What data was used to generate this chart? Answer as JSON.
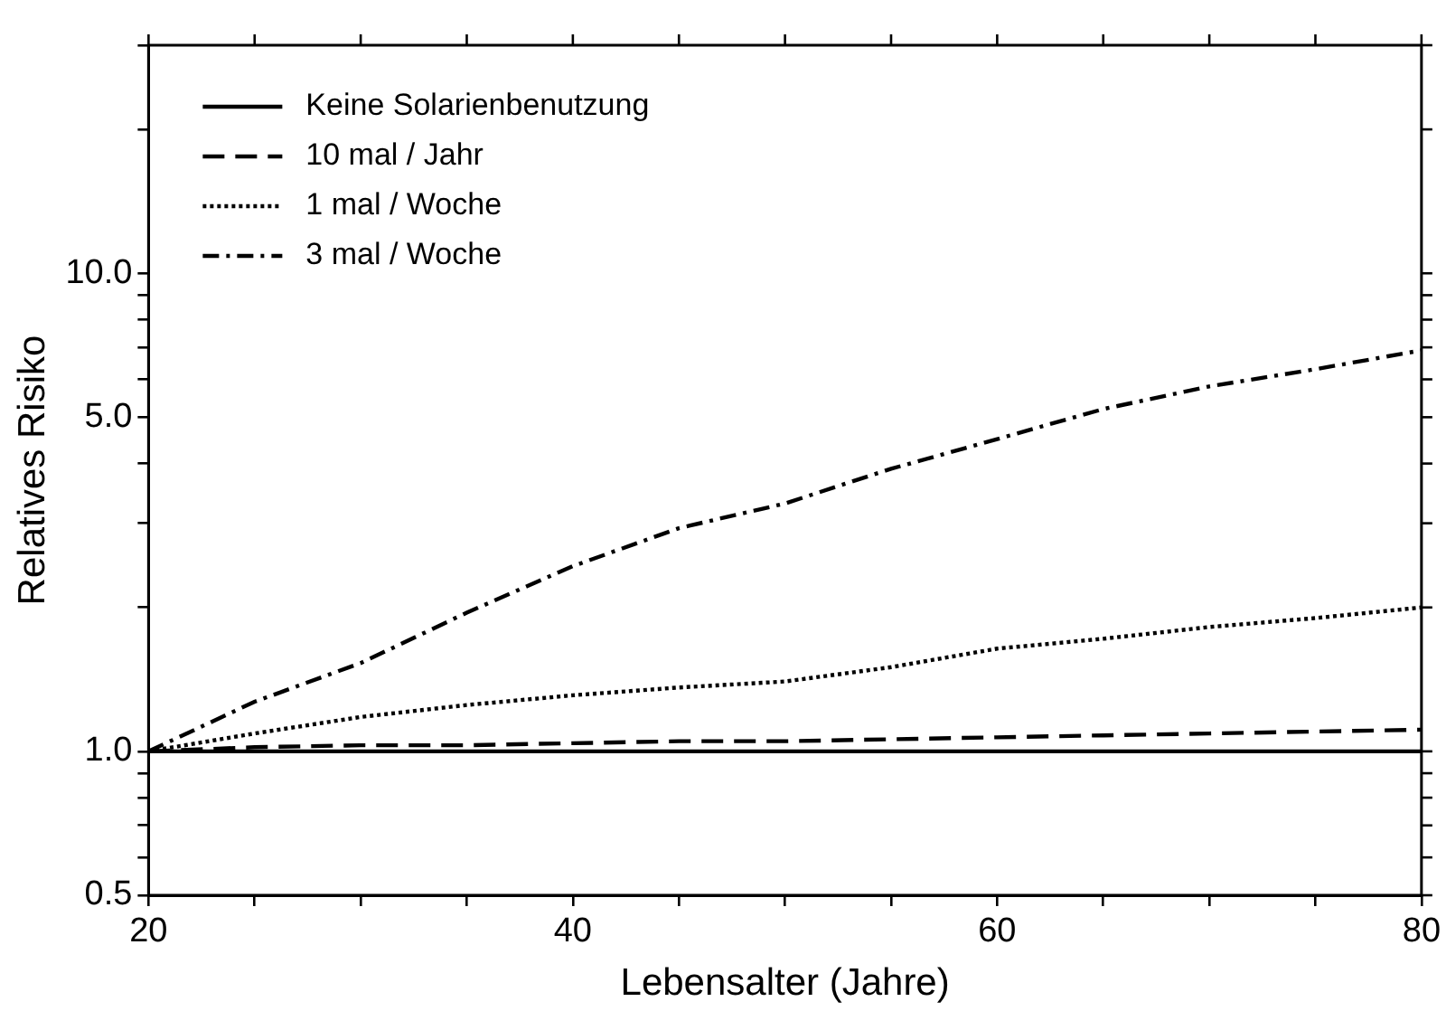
{
  "chart_data": {
    "type": "line",
    "xlabel": "Lebensalter (Jahre)",
    "ylabel": "Relatives Risiko",
    "x": [
      20,
      25,
      30,
      35,
      40,
      45,
      50,
      55,
      60,
      65,
      70,
      75,
      80
    ],
    "series": [
      {
        "name": "Keine Solarienbenutzung",
        "color": "#000000",
        "line_style": "solid",
        "values": [
          1.0,
          1.0,
          1.0,
          1.0,
          1.0,
          1.0,
          1.0,
          1.0,
          1.0,
          1.0,
          1.0,
          1.0,
          1.0
        ]
      },
      {
        "name": "10 mal / Jahr",
        "color": "#000000",
        "line_style": "dashed",
        "values": [
          1.0,
          1.02,
          1.03,
          1.03,
          1.04,
          1.05,
          1.05,
          1.06,
          1.07,
          1.08,
          1.09,
          1.1,
          1.11
        ]
      },
      {
        "name": "1 mal / Woche",
        "color": "#000000",
        "line_style": "dotted",
        "values": [
          1.0,
          1.09,
          1.18,
          1.25,
          1.31,
          1.36,
          1.4,
          1.5,
          1.64,
          1.72,
          1.82,
          1.9,
          2.0
        ]
      },
      {
        "name": "3 mal / Woche",
        "color": "#000000",
        "line_style": "dashdot",
        "values": [
          1.0,
          1.27,
          1.53,
          1.95,
          2.44,
          2.93,
          3.3,
          3.9,
          4.5,
          5.2,
          5.8,
          6.3,
          6.9
        ]
      }
    ],
    "log": "y",
    "xlim": [
      20,
      80
    ],
    "ylim": [
      0.5,
      30
    ],
    "xticks": [
      20,
      {
        "value": 25,
        "label": null
      },
      {
        "value": 30,
        "label": null
      },
      {
        "value": 35,
        "label": null
      },
      40,
      {
        "value": 45,
        "label": null
      },
      {
        "value": 50,
        "label": null
      },
      {
        "value": 55,
        "label": null
      },
      60,
      {
        "value": 65,
        "label": null
      },
      {
        "value": 70,
        "label": null
      },
      {
        "value": 75,
        "label": null
      },
      80
    ],
    "yticks": [
      {
        "value": 0.5,
        "label": "0.5"
      },
      {
        "value": 0.6,
        "label": null
      },
      {
        "value": 0.7,
        "label": null
      },
      {
        "value": 0.8,
        "label": null
      },
      {
        "value": 0.9,
        "label": null
      },
      {
        "value": 1,
        "label": "1.0"
      },
      {
        "value": 2,
        "label": null
      },
      {
        "value": 3,
        "label": null
      },
      {
        "value": 4,
        "label": null
      },
      {
        "value": 5,
        "label": "5.0"
      },
      {
        "value": 6,
        "label": null
      },
      {
        "value": 7,
        "label": null
      },
      {
        "value": 8,
        "label": null
      },
      {
        "value": 9,
        "label": null
      },
      {
        "value": 10,
        "label": "10.0"
      },
      {
        "value": 20,
        "label": null
      },
      {
        "value": 30,
        "label": null
      }
    ],
    "grid": false,
    "legend": "top left",
    "marker": "none"
  }
}
